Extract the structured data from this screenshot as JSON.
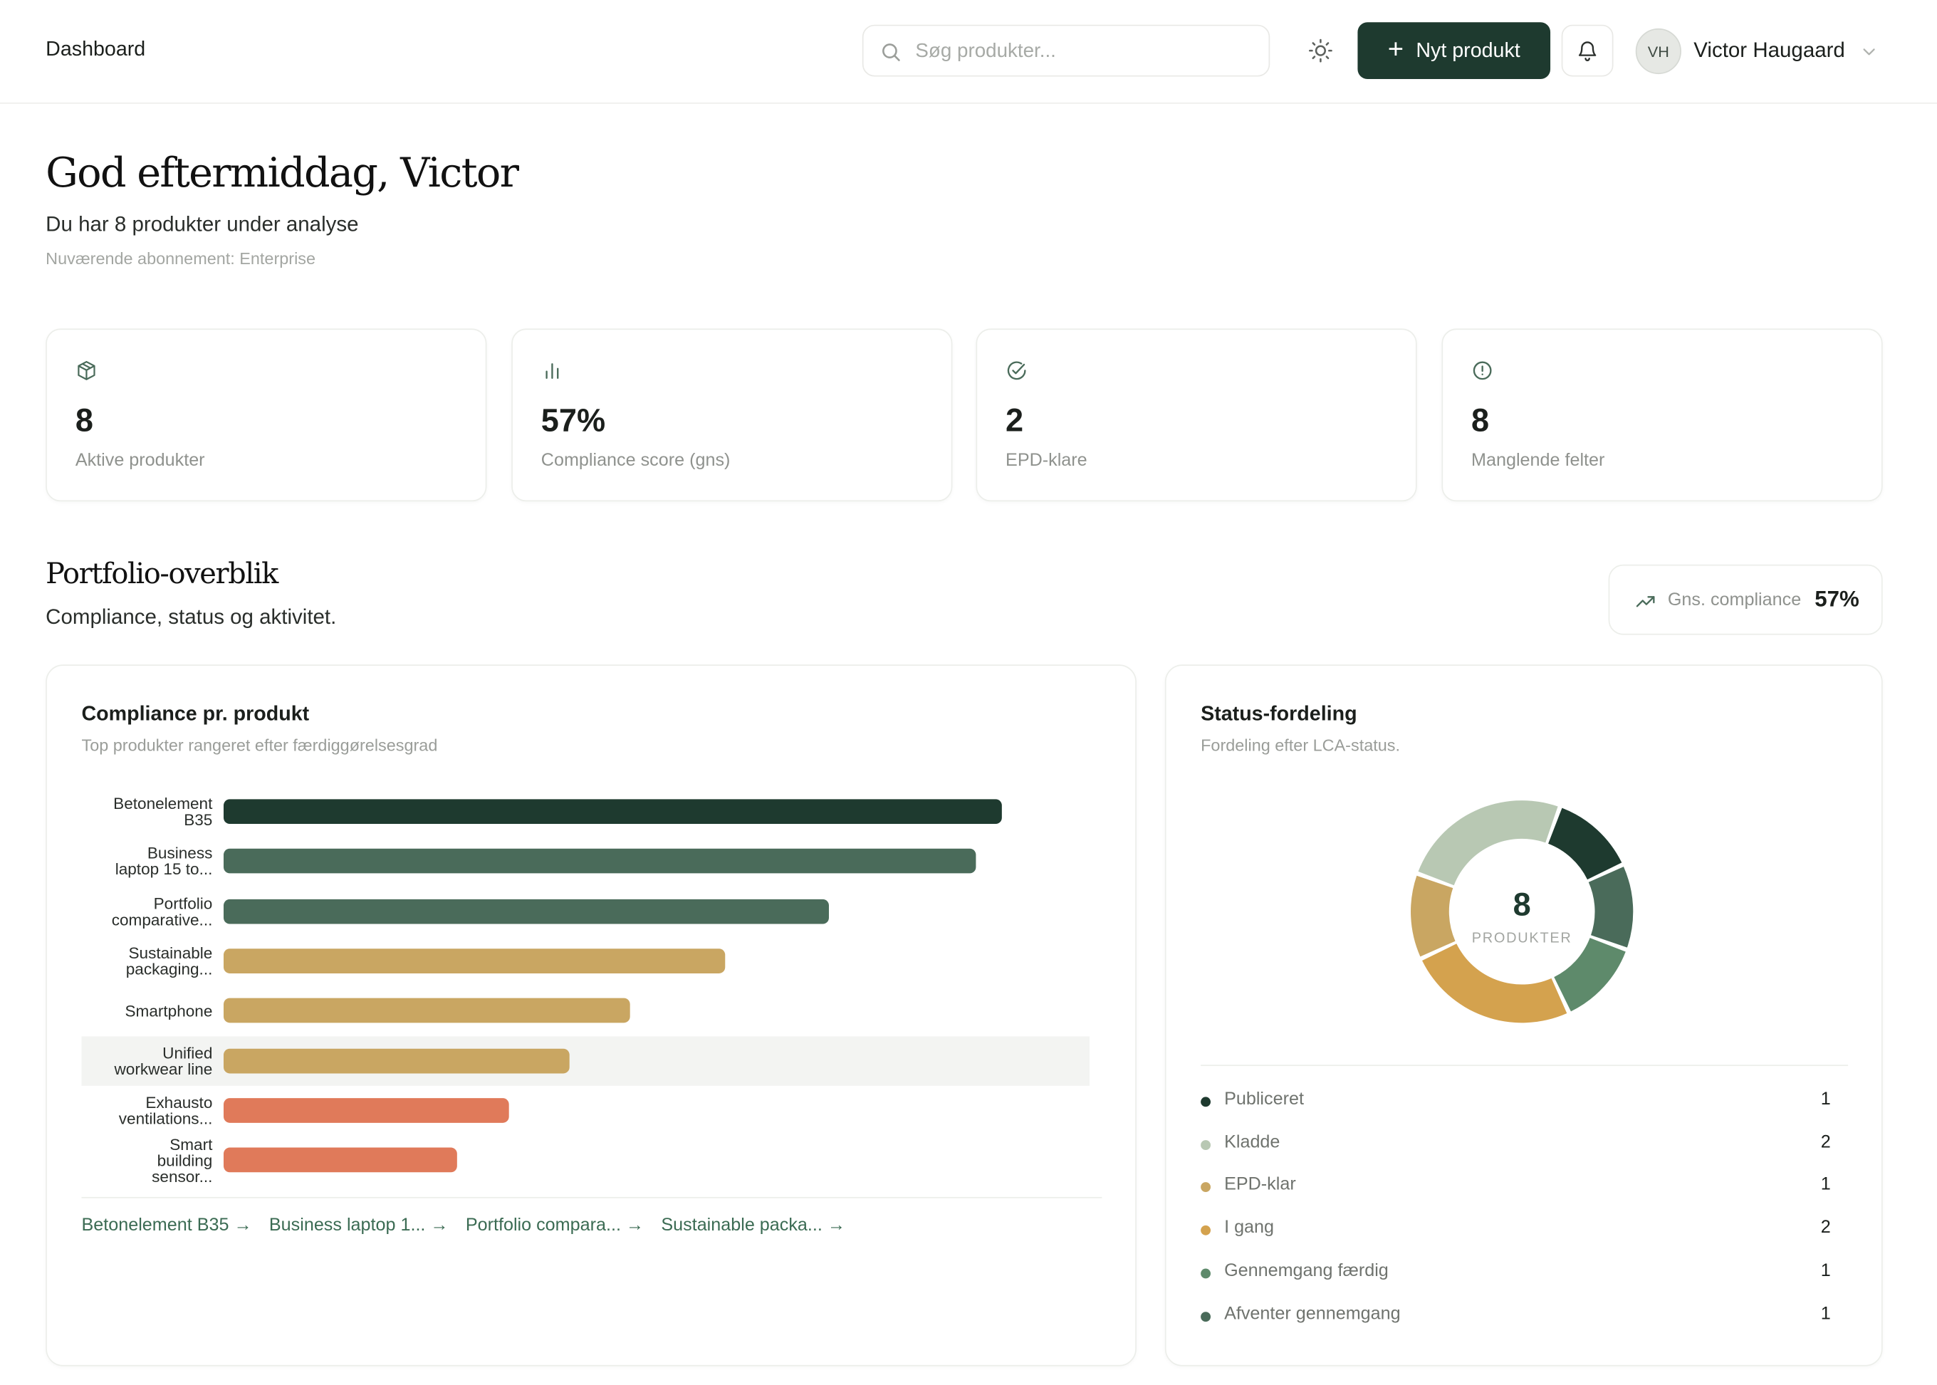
{
  "header": {
    "breadcrumb": "Dashboard",
    "search_placeholder": "Søg produkter...",
    "new_button": "Nyt produkt",
    "user_initials": "VH",
    "user_name": "Victor Haugaard"
  },
  "greeting": {
    "title": "God eftermiddag, Victor",
    "subtitle": "Du har 8 produkter under analyse",
    "plan": "Nuværende abonnement: Enterprise"
  },
  "stats": [
    {
      "icon": "package-icon",
      "value": "8",
      "label": "Aktive produkter"
    },
    {
      "icon": "bar-chart-icon",
      "value": "57%",
      "label": "Compliance score (gns)"
    },
    {
      "icon": "check-circle-icon",
      "value": "2",
      "label": "EPD-klare"
    },
    {
      "icon": "alert-circle-icon",
      "value": "8",
      "label": "Manglende felter"
    }
  ],
  "portfolio": {
    "title": "Portfolio-overblik",
    "subtitle": "Compliance, status og aktivitet.",
    "avg_label": "Gns. compliance",
    "avg_value": "57%"
  },
  "compliance_panel": {
    "title": "Compliance pr. produkt",
    "description": "Top produkter rangeret efter færdiggørelsesgrad",
    "links": [
      "Betonelement B35 →",
      "Business laptop 1... →",
      "Portfolio compara... →",
      "Sustainable packa... →"
    ]
  },
  "status_panel": {
    "title": "Status-fordeling",
    "description": "Fordeling efter LCA-status.",
    "center_value": "8",
    "center_label": "PRODUKTER"
  },
  "chart_data": [
    {
      "type": "bar",
      "orientation": "horizontal",
      "categories": [
        [
          "Betonelement",
          "B35"
        ],
        [
          "Business",
          "laptop 15 to..."
        ],
        [
          "Portfolio",
          "comparative..."
        ],
        [
          "Sustainable",
          "packaging..."
        ],
        [
          "Smartphone"
        ],
        [
          "Unified",
          "workwear line"
        ],
        [
          "Exhausto",
          "ventilations..."
        ],
        [
          "Smart",
          "building",
          "sensor..."
        ]
      ],
      "values": [
        90,
        87,
        70,
        58,
        47,
        40,
        33,
        27
      ],
      "colors": [
        "#1e3a2f",
        "#4a6b5a",
        "#4a6b5a",
        "#c9a662",
        "#c9a662",
        "#c9a662",
        "#e07a5a",
        "#e07a5a"
      ],
      "highlighted_index": 5,
      "xlim": [
        0,
        100
      ],
      "grid": false
    },
    {
      "type": "pie",
      "style": "donut",
      "slices": [
        {
          "label": "Publiceret",
          "value": 1,
          "color": "#1e3a2f"
        },
        {
          "label": "Afventer gennemgang",
          "value": 1,
          "color": "#4a6b5a"
        },
        {
          "label": "Gennemgang færdig",
          "value": 1,
          "color": "#5e8a6b"
        },
        {
          "label": "I gang",
          "value": 2,
          "color": "#d4a24e"
        },
        {
          "label": "EPD-klar",
          "value": 1,
          "color": "#c9a662"
        },
        {
          "label": "Kladde",
          "value": 2,
          "color": "#b8c8b3"
        }
      ],
      "legend": [
        {
          "label": "Publiceret",
          "count": "1",
          "color": "#1e3a2f"
        },
        {
          "label": "Kladde",
          "count": "2",
          "color": "#b8c8b3"
        },
        {
          "label": "EPD-klar",
          "count": "1",
          "color": "#c9a662"
        },
        {
          "label": "I gang",
          "count": "2",
          "color": "#d4a24e"
        },
        {
          "label": "Gennemgang færdig",
          "count": "1",
          "color": "#5e8a6b"
        },
        {
          "label": "Afventer gennemgang",
          "count": "1",
          "color": "#4a6b5a"
        }
      ]
    }
  ]
}
